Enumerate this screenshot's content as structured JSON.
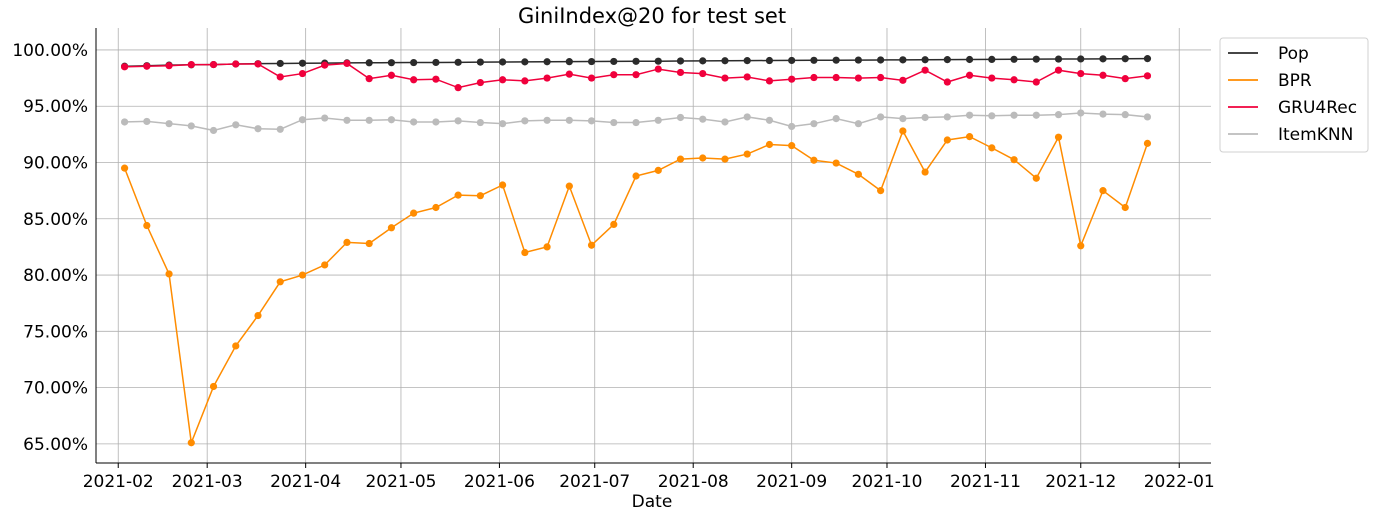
{
  "chart_data": {
    "type": "line",
    "title": "GiniIndex@20 for test set",
    "xlabel": "Date",
    "ylabel": "",
    "ylim": [
      0.633,
      1.0195
    ],
    "xlim": [
      "2021-01-25",
      "2022-01-11"
    ],
    "y_format": "percent_2dp",
    "y_ticks": [
      0.65,
      0.7,
      0.75,
      0.8,
      0.85,
      0.9,
      0.95,
      1.0
    ],
    "x_ticks": [
      "2021-02-01",
      "2021-03-01",
      "2021-04-01",
      "2021-05-01",
      "2021-06-01",
      "2021-07-01",
      "2021-08-01",
      "2021-09-01",
      "2021-10-01",
      "2021-11-01",
      "2021-12-01",
      "2022-01-01"
    ],
    "x_tick_labels": [
      "2021-02",
      "2021-03",
      "2021-04",
      "2021-05",
      "2021-06",
      "2021-07",
      "2021-08",
      "2021-09",
      "2021-10",
      "2021-11",
      "2021-12",
      "2022-01"
    ],
    "grid": true,
    "legend": "outside top-right",
    "x": [
      "2021-02-03",
      "2021-02-10",
      "2021-02-17",
      "2021-02-24",
      "2021-03-03",
      "2021-03-10",
      "2021-03-17",
      "2021-03-24",
      "2021-03-31",
      "2021-04-07",
      "2021-04-14",
      "2021-04-21",
      "2021-04-28",
      "2021-05-05",
      "2021-05-12",
      "2021-05-19",
      "2021-05-26",
      "2021-06-02",
      "2021-06-09",
      "2021-06-16",
      "2021-06-23",
      "2021-06-30",
      "2021-07-07",
      "2021-07-14",
      "2021-07-21",
      "2021-07-28",
      "2021-08-04",
      "2021-08-11",
      "2021-08-18",
      "2021-08-25",
      "2021-09-01",
      "2021-09-08",
      "2021-09-15",
      "2021-09-22",
      "2021-09-29",
      "2021-10-06",
      "2021-10-13",
      "2021-10-20",
      "2021-10-27",
      "2021-11-03",
      "2021-11-10",
      "2021-11-17",
      "2021-11-24",
      "2021-12-01",
      "2021-12-08",
      "2021-12-15",
      "2021-12-22"
    ],
    "series": [
      {
        "name": "Pop",
        "color": "#2b2b2b",
        "values": [
          0.9855,
          0.986,
          0.9865,
          0.9868,
          0.987,
          0.9875,
          0.9878,
          0.988,
          0.9882,
          0.9883,
          0.9885,
          0.9886,
          0.9887,
          0.9888,
          0.9889,
          0.989,
          0.9892,
          0.9893,
          0.9894,
          0.9895,
          0.9896,
          0.9897,
          0.9898,
          0.9899,
          0.99,
          0.9902,
          0.9903,
          0.9904,
          0.9905,
          0.9906,
          0.9907,
          0.9908,
          0.9909,
          0.991,
          0.9911,
          0.9912,
          0.9913,
          0.9914,
          0.9915,
          0.9916,
          0.9917,
          0.9918,
          0.9919,
          0.992,
          0.9921,
          0.9922,
          0.9923
        ]
      },
      {
        "name": "BPR",
        "color": "#ff8c00",
        "values": [
          0.895,
          0.844,
          0.801,
          0.651,
          0.701,
          0.737,
          0.764,
          0.794,
          0.8,
          0.809,
          0.829,
          0.828,
          0.842,
          0.855,
          0.86,
          0.871,
          0.8705,
          0.88,
          0.82,
          0.825,
          0.879,
          0.8265,
          0.845,
          0.888,
          0.893,
          0.903,
          0.904,
          0.903,
          0.9075,
          0.916,
          0.915,
          0.902,
          0.8995,
          0.8895,
          0.875,
          0.928,
          0.8915,
          0.92,
          0.923,
          0.913,
          0.9025,
          0.886,
          0.9225,
          0.826,
          0.875,
          0.86,
          0.917
        ]
      },
      {
        "name": "GRU4Rec",
        "color": "#f0003c",
        "values": [
          0.985,
          0.9855,
          0.986,
          0.987,
          0.987,
          0.9875,
          0.9875,
          0.976,
          0.979,
          0.9865,
          0.988,
          0.9745,
          0.9775,
          0.9735,
          0.974,
          0.9665,
          0.971,
          0.9735,
          0.9725,
          0.975,
          0.9785,
          0.975,
          0.978,
          0.978,
          0.983,
          0.98,
          0.979,
          0.975,
          0.976,
          0.9725,
          0.974,
          0.9755,
          0.9755,
          0.975,
          0.9755,
          0.973,
          0.982,
          0.9715,
          0.9775,
          0.975,
          0.9735,
          0.9715,
          0.982,
          0.979,
          0.9775,
          0.9745,
          0.977
        ]
      },
      {
        "name": "ItemKNN",
        "color": "#bbbbbb",
        "values": [
          0.936,
          0.9365,
          0.9345,
          0.9325,
          0.9285,
          0.9335,
          0.93,
          0.9295,
          0.938,
          0.9395,
          0.9375,
          0.9375,
          0.938,
          0.936,
          0.936,
          0.937,
          0.9355,
          0.9345,
          0.937,
          0.9375,
          0.9375,
          0.937,
          0.9355,
          0.9355,
          0.9375,
          0.94,
          0.9385,
          0.936,
          0.9405,
          0.9375,
          0.932,
          0.9345,
          0.939,
          0.9345,
          0.9405,
          0.939,
          0.94,
          0.9405,
          0.942,
          0.9415,
          0.942,
          0.942,
          0.9425,
          0.944,
          0.943,
          0.9425,
          0.9405
        ]
      }
    ]
  }
}
